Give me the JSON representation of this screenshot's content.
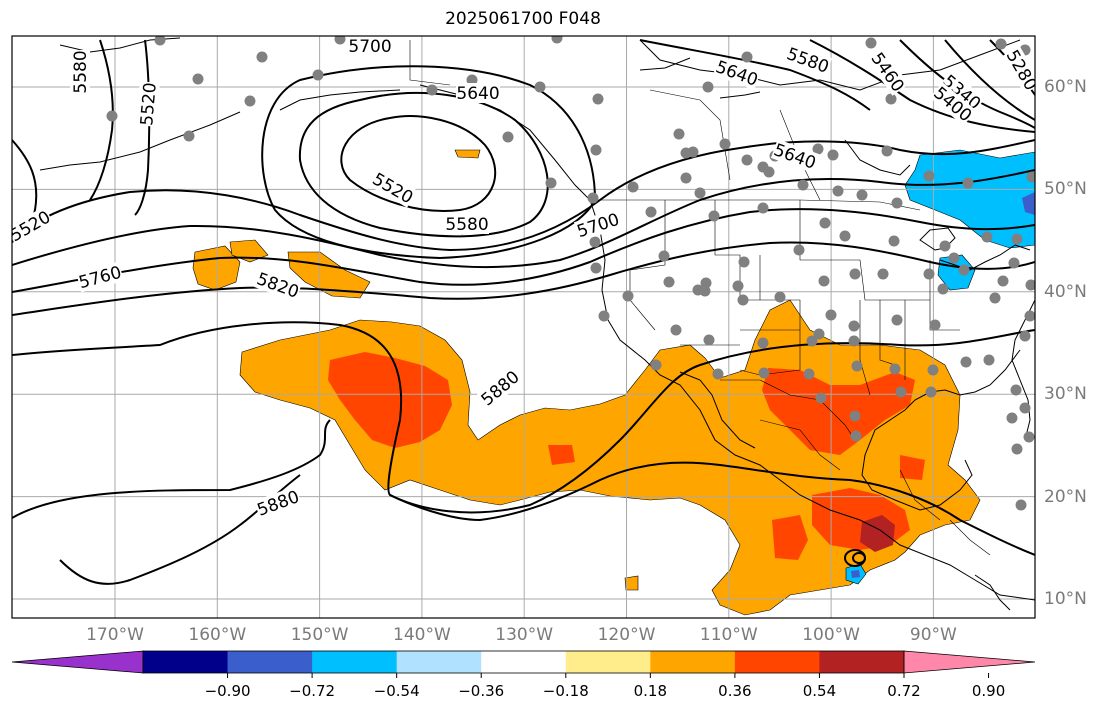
{
  "title": "2025061700 F048",
  "lon_ticks": [
    {
      "label": "170°W",
      "lon": -170
    },
    {
      "label": "160°W",
      "lon": -160
    },
    {
      "label": "150°W",
      "lon": -150
    },
    {
      "label": "140°W",
      "lon": -140
    },
    {
      "label": "130°W",
      "lon": -130
    },
    {
      "label": "120°W",
      "lon": -120
    },
    {
      "label": "110°W",
      "lon": -110
    },
    {
      "label": "100°W",
      "lon": -100
    },
    {
      "label": "90°W",
      "lon": -90
    }
  ],
  "lat_ticks": [
    {
      "label": "60°N",
      "lat": 60
    },
    {
      "label": "50°N",
      "lat": 50
    },
    {
      "label": "40°N",
      "lat": 40
    },
    {
      "label": "30°N",
      "lat": 30
    },
    {
      "label": "20°N",
      "lat": 20
    },
    {
      "label": "10°N",
      "lat": 10
    }
  ],
  "contour_labels": [
    "5700",
    "5580",
    "5640",
    "5520",
    "5640",
    "5580",
    "5460",
    "5340",
    "5280",
    "5400",
    "5640",
    "5520",
    "5580",
    "5700",
    "5520",
    "5760",
    "5820",
    "5880",
    "5880"
  ],
  "colorbar": {
    "colors": [
      "#9932cc",
      "#00008b",
      "#3a5fcd",
      "#00bfff",
      "#b0e2ff",
      "#ffffff",
      "#ffec8b",
      "#ffa500",
      "#ff4500",
      "#b22222",
      "#ff88aa"
    ],
    "tick_labels": [
      "−0.90",
      "−0.72",
      "−0.54",
      "−0.36",
      "−0.18",
      "0.18",
      "0.36",
      "0.54",
      "0.72",
      "0.90"
    ]
  },
  "colors": {
    "frame": "#000000",
    "grid": "#aaaaaa",
    "station_dot": "#808080",
    "contour": "#000000",
    "positive_54": "#ffa500",
    "positive_72": "#ff4500",
    "positive_90": "#b22222",
    "negative_36": "#00bfff"
  }
}
